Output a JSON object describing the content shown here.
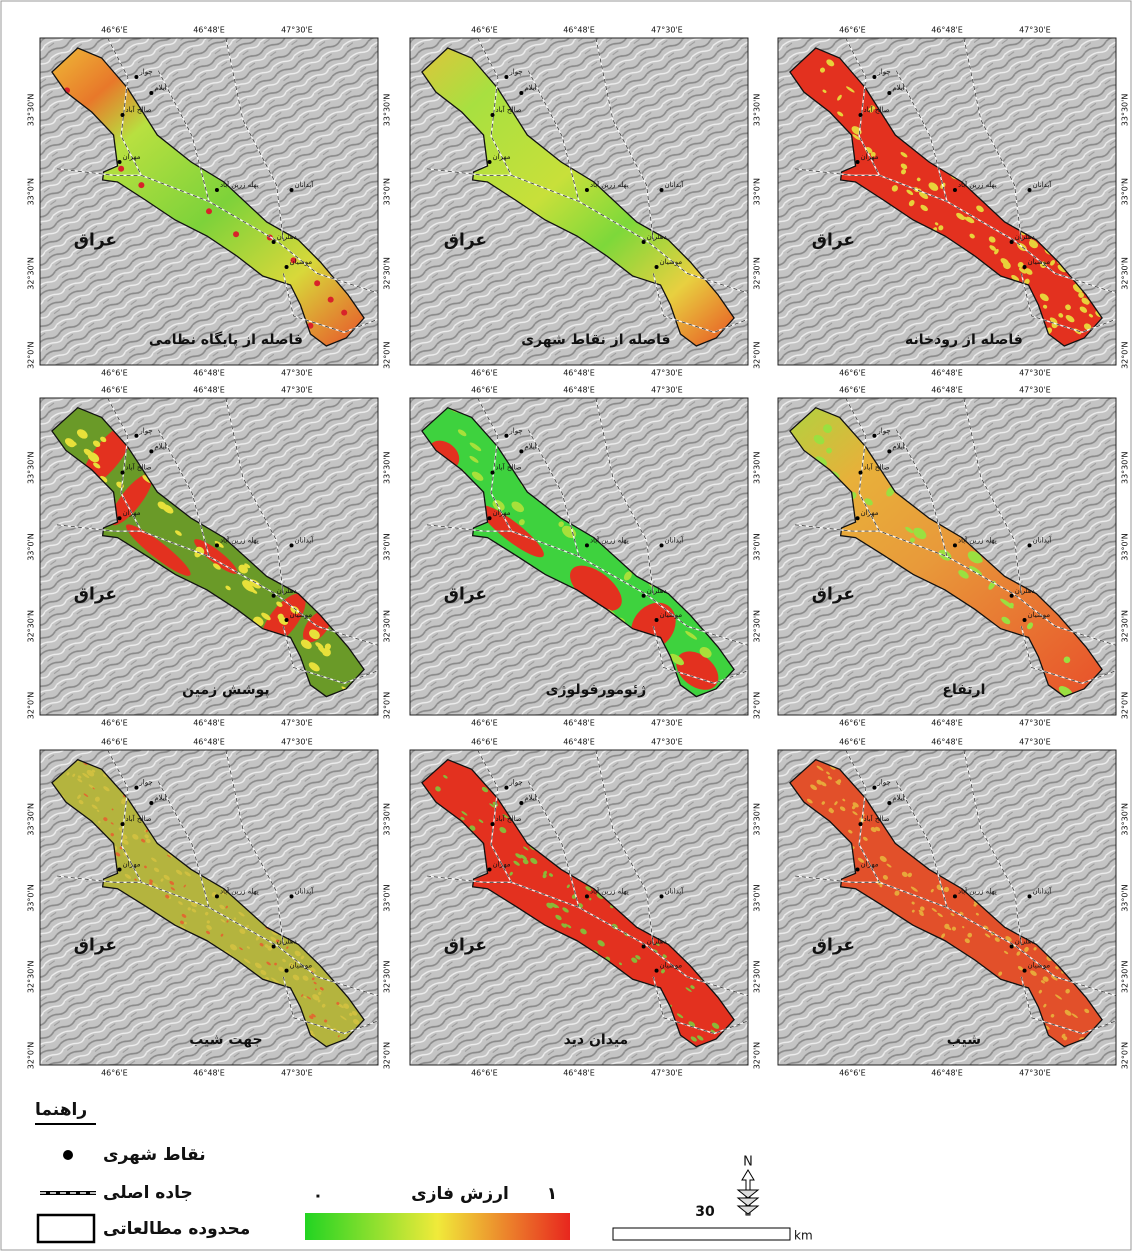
{
  "panels": [
    {
      "title": "فاصله از پایگاه نظامی"
    },
    {
      "title": "فاصله از نقاط شهری"
    },
    {
      "title": "فاصله از رودخانه"
    },
    {
      "title": "پوشش زمین"
    },
    {
      "title": "ژئومورفولوژی"
    },
    {
      "title": "ارتفاع"
    },
    {
      "title": "جهت شیب"
    },
    {
      "title": "میدان دید"
    },
    {
      "title": "شیب"
    }
  ],
  "country_label": "عراق",
  "lon_ticks": [
    "46°6'E",
    "46°48'E",
    "47°30'E"
  ],
  "lat_ticks": [
    "33°30'N",
    "33°0'N",
    "32°30'N",
    "32°0'N"
  ],
  "cities": [
    "چوار",
    "ایلام",
    "صالح آباد",
    "مهران",
    "پهله زرین آباد",
    "آبدانان",
    "دهلران",
    "موسیان"
  ],
  "legend": {
    "title": "راهنما",
    "items": [
      "نقاط شهری",
      "جاده اصلی",
      "محدوده مطالعاتی"
    ]
  },
  "colorbar": {
    "title": "ارزش فازی",
    "min": "۰",
    "max": "۱"
  },
  "scale_bar": {
    "distance": "30",
    "unit": "km"
  },
  "north": "N"
}
